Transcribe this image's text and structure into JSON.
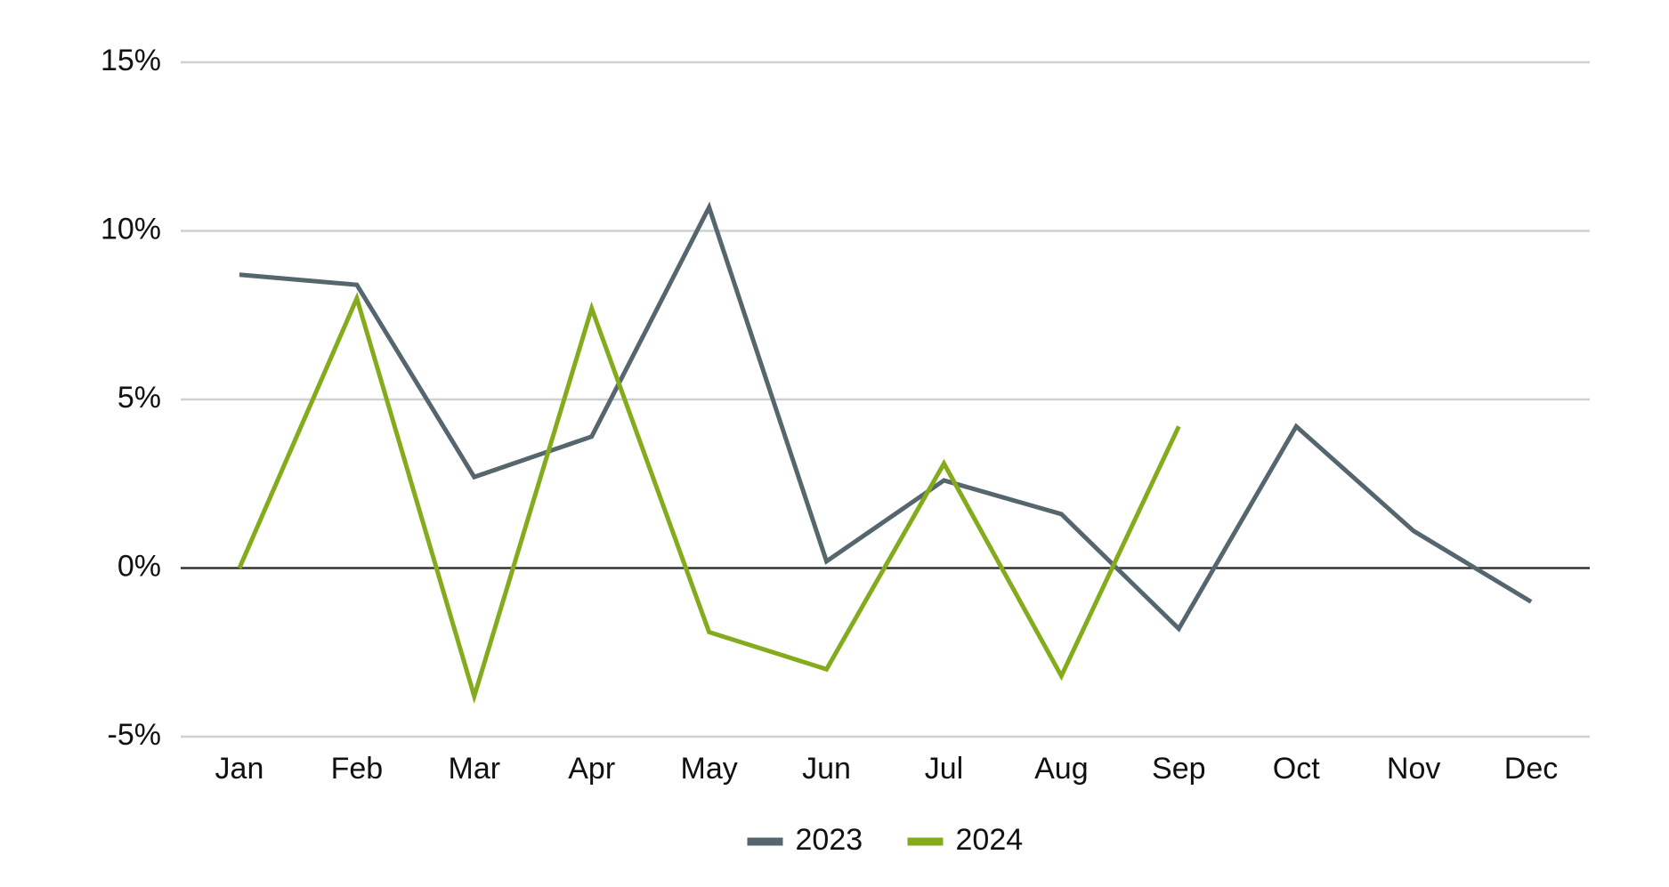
{
  "chart_data": {
    "type": "line",
    "categories": [
      "Jan",
      "Feb",
      "Mar",
      "Apr",
      "May",
      "Jun",
      "Jul",
      "Aug",
      "Sep",
      "Oct",
      "Nov",
      "Dec"
    ],
    "series": [
      {
        "name": "2023",
        "color": "#56666f",
        "values": [
          8.7,
          8.4,
          2.7,
          3.9,
          10.7,
          0.2,
          2.6,
          1.6,
          -1.8,
          4.2,
          1.1,
          -1.0
        ]
      },
      {
        "name": "2024",
        "color": "#84ab1c",
        "values": [
          0,
          8.0,
          -3.8,
          7.7,
          -1.9,
          -3.0,
          3.1,
          -3.2,
          4.2,
          null,
          null,
          null
        ]
      }
    ],
    "ylim": [
      -5,
      15
    ],
    "yticks": [
      {
        "value": -5,
        "label": "-5%"
      },
      {
        "value": 0,
        "label": "0%"
      },
      {
        "value": 5,
        "label": "5%"
      },
      {
        "value": 10,
        "label": "10%"
      },
      {
        "value": 15,
        "label": "15%"
      }
    ],
    "grid": true,
    "legend": "bottom"
  }
}
